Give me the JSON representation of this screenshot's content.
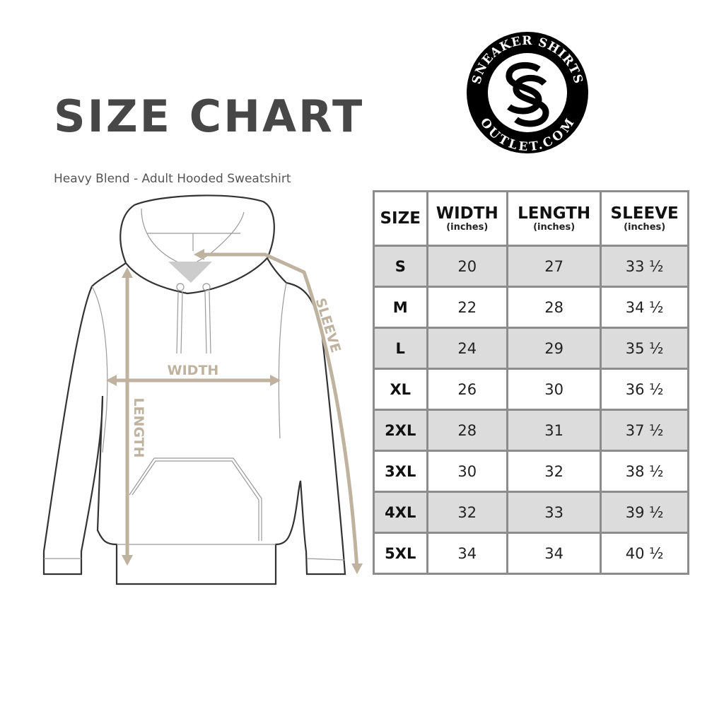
{
  "title": "SIZE CHART",
  "subtitle": "Heavy Blend - Adult Hooded Sweatshirt",
  "logo": {
    "text_top": "SNEAKER SHIRTS",
    "text_bottom": "OUTLET.COM",
    "monogram": "SS"
  },
  "diagram": {
    "width_label": "WIDTH",
    "length_label": "LENGTH",
    "sleeve_label": "SLEEVE",
    "arrow_color": "#bfb3a0"
  },
  "table": {
    "headers": [
      {
        "label": "SIZE",
        "unit": ""
      },
      {
        "label": "WIDTH",
        "unit": "(inches)"
      },
      {
        "label": "LENGTH",
        "unit": "(inches)"
      },
      {
        "label": "SLEEVE",
        "unit": "(inches)"
      }
    ],
    "rows": [
      [
        "S",
        "20",
        "27",
        "33 ½"
      ],
      [
        "M",
        "22",
        "28",
        "34 ½"
      ],
      [
        "L",
        "24",
        "29",
        "35 ½"
      ],
      [
        "XL",
        "26",
        "30",
        "36 ½"
      ],
      [
        "2XL",
        "28",
        "31",
        "37 ½"
      ],
      [
        "3XL",
        "30",
        "32",
        "38 ½"
      ],
      [
        "4XL",
        "32",
        "33",
        "39 ½"
      ],
      [
        "5XL",
        "34",
        "34",
        "40 ½"
      ]
    ]
  }
}
